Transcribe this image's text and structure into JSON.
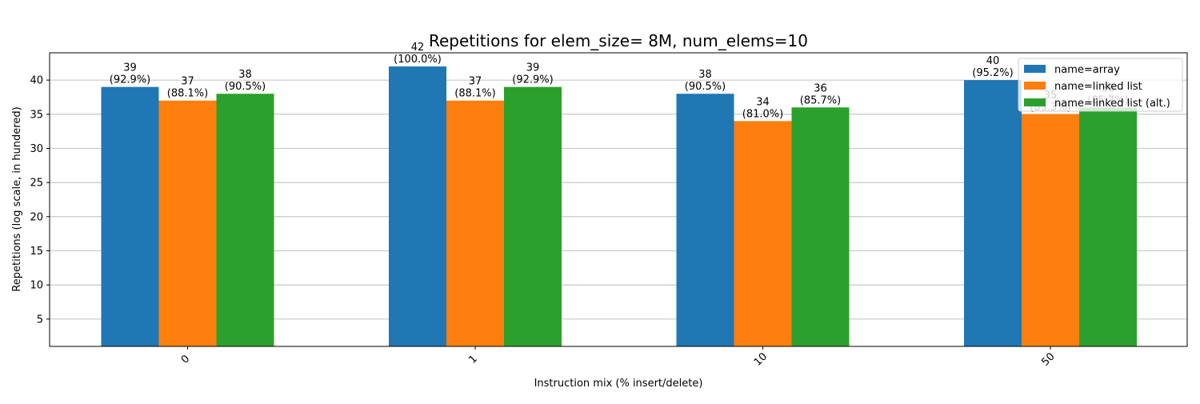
{
  "chart_data": {
    "type": "bar",
    "title": "Repetitions for elem_size= 8M, num_elems=10",
    "xlabel": "Instruction mix (% insert/delete)",
    "ylabel": "Repetitions (log scale, in hundered)",
    "categories": [
      "0",
      "1",
      "10",
      "50"
    ],
    "series": [
      {
        "name": "name=array",
        "color": "#1f77b4",
        "values": [
          39,
          42,
          38,
          40
        ],
        "labels": [
          "(92.9%)",
          "(100.0%)",
          "(90.5%)",
          "(95.2%)"
        ]
      },
      {
        "name": "name=linked list",
        "color": "#ff7f0e",
        "values": [
          37,
          37,
          34,
          35
        ],
        "labels": [
          "(88.1%)",
          "(88.1%)",
          "(81.0%)",
          "(83.3%)"
        ]
      },
      {
        "name": "name=linked list (alt.)",
        "color": "#2ca02c",
        "values": [
          38,
          39,
          36,
          36
        ],
        "labels": [
          "(90.5%)",
          "(92.9%)",
          "(85.7%)",
          "(85.7%)"
        ]
      }
    ],
    "yticks": [
      5,
      10,
      15,
      20,
      25,
      30,
      35,
      40
    ],
    "ylim": [
      1,
      44
    ],
    "grid": "y",
    "legend": "top-right"
  }
}
